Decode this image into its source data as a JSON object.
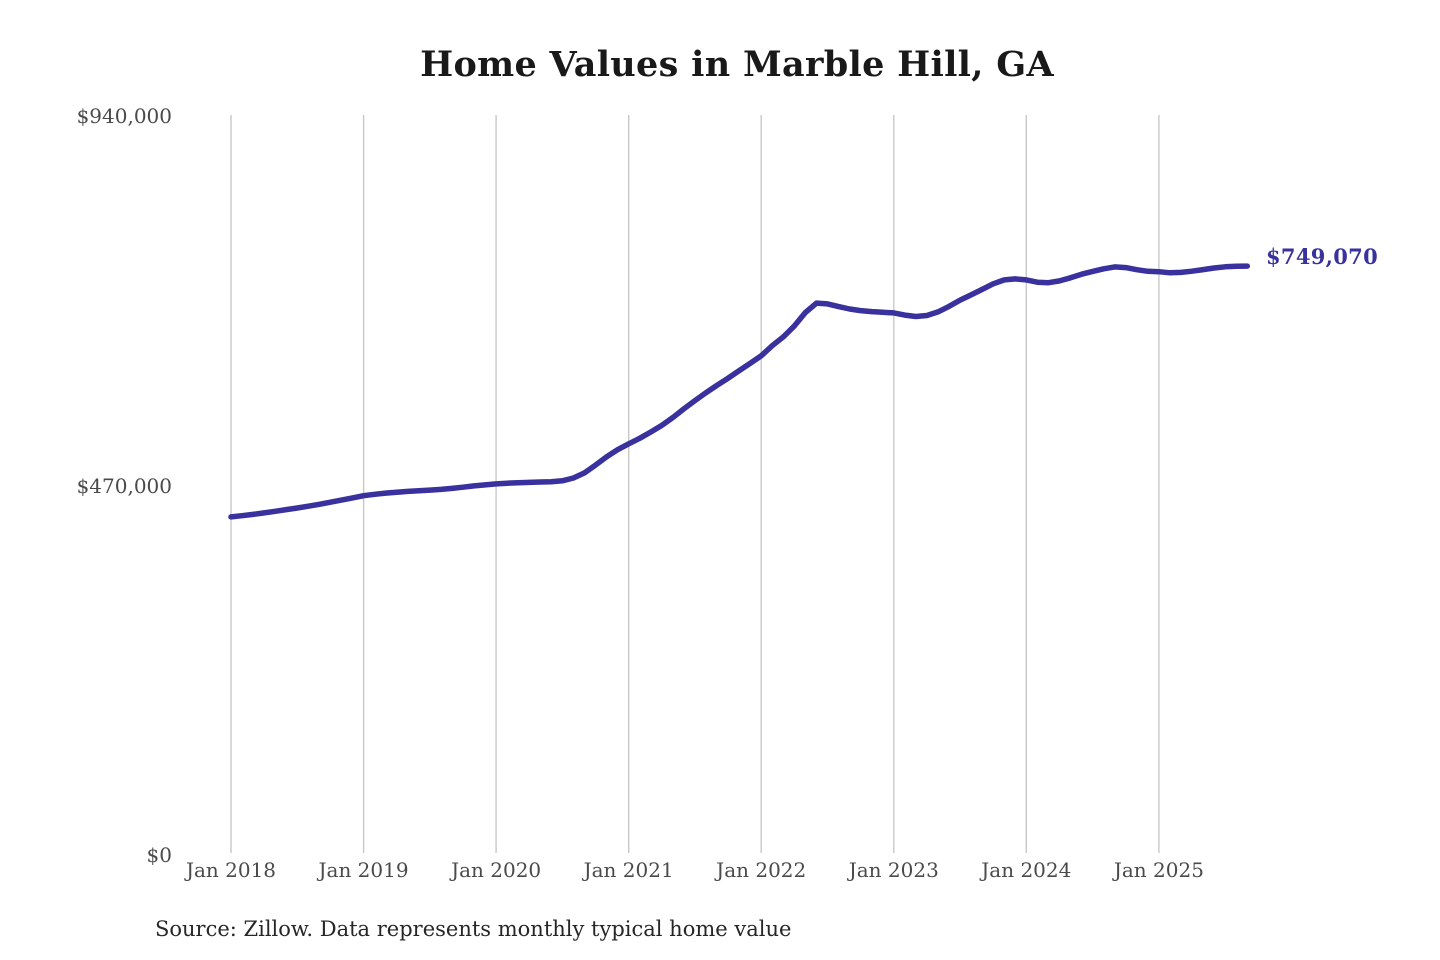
{
  "title": "Home Values in Marble Hill, GA",
  "annotation": {
    "text": "$749,070"
  },
  "source": "Source: Zillow. Data represents monthly typical home value",
  "colors": {
    "line": "#39319d",
    "annotation": "#39319d",
    "grid": "#c8c8c8",
    "tick_label": "#4a4a4a",
    "title": "#191919",
    "background": "#ffffff"
  },
  "chart_data": {
    "type": "line",
    "title": "Home Values in Marble Hill, GA",
    "xlabel": "",
    "ylabel": "",
    "x_start": "2018-01",
    "x_end": "2025-09",
    "x_interval": "monthly",
    "ylim": [
      0,
      940000
    ],
    "grid": "vertical-only",
    "legend": "none",
    "y_ticks": [
      {
        "label": "$0",
        "value": 0
      },
      {
        "label": "$470,000",
        "value": 470000
      },
      {
        "label": "$940,000",
        "value": 940000
      }
    ],
    "x_ticks": [
      {
        "label": "Jan 2018",
        "month_index": 0
      },
      {
        "label": "Jan 2019",
        "month_index": 12
      },
      {
        "label": "Jan 2020",
        "month_index": 24
      },
      {
        "label": "Jan 2021",
        "month_index": 36
      },
      {
        "label": "Jan 2022",
        "month_index": 48
      },
      {
        "label": "Jan 2023",
        "month_index": 60
      },
      {
        "label": "Jan 2024",
        "month_index": 72
      },
      {
        "label": "Jan 2025",
        "month_index": 84
      }
    ],
    "end_label": "$749,070",
    "end_value": 749070,
    "series": [
      {
        "name": "Monthly typical home value",
        "color": "#39319d",
        "values": [
          430000,
          431600,
          433300,
          435200,
          437200,
          439300,
          441400,
          443700,
          446100,
          448700,
          451400,
          454200,
          457000,
          458800,
          460300,
          461500,
          462500,
          463300,
          464100,
          465100,
          466300,
          467800,
          469500,
          470800,
          472000,
          472900,
          473500,
          474000,
          474400,
          474700,
          476000,
          479500,
          486000,
          496000,
          506500,
          515500,
          523000,
          530000,
          538000,
          546500,
          556500,
          567500,
          578000,
          588000,
          597500,
          606500,
          616000,
          625500,
          635000,
          648000,
          659000,
          673000,
          690000,
          702000,
          701000,
          697500,
          694500,
          692500,
          691200,
          690300,
          689500,
          686800,
          685000,
          686200,
          690800,
          697800,
          705800,
          712500,
          719500,
          726500,
          731500,
          732800,
          731500,
          728600,
          728000,
          730200,
          734200,
          738800,
          742300,
          745600,
          748000,
          747200,
          744500,
          742500,
          742000,
          740600,
          741000,
          742600,
          744600,
          746700,
          748200,
          748800,
          749070
        ]
      }
    ]
  }
}
